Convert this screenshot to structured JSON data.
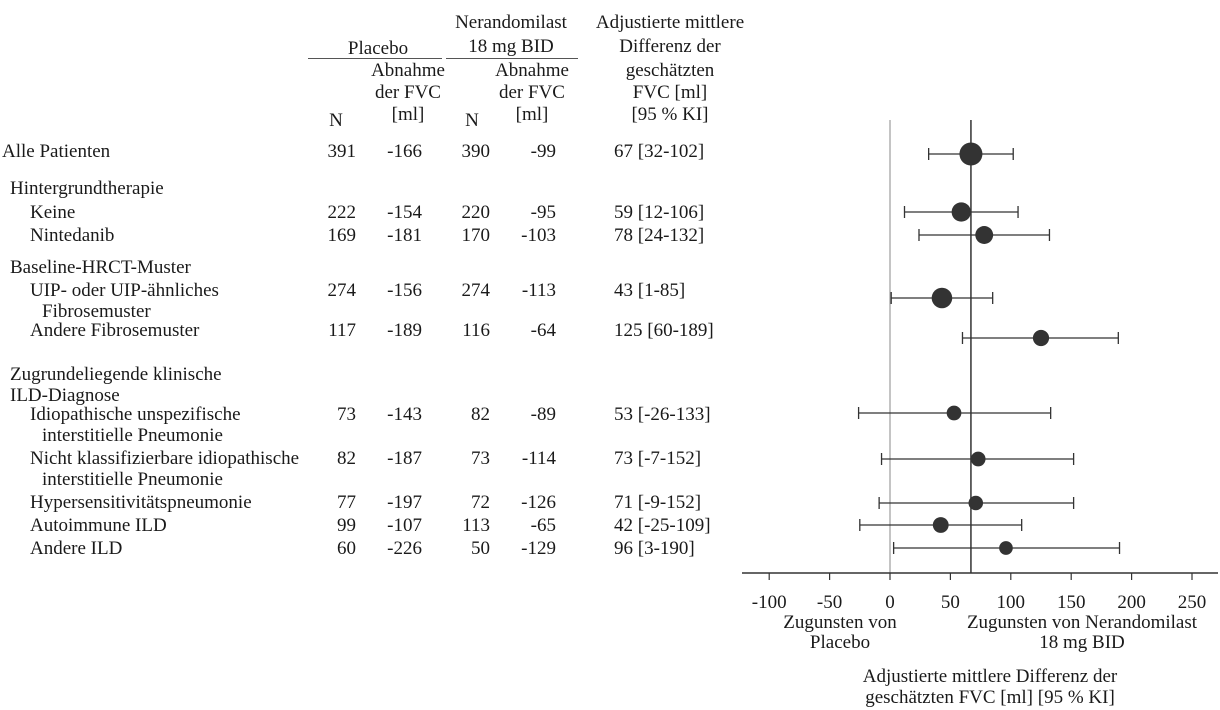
{
  "header": {
    "placebo": "Placebo",
    "ner_line1": "Nerandomilast",
    "ner_line2": "18 mg BID",
    "decline_line1": "Abnahme",
    "decline_line2": "der FVC",
    "decline_line3": "[ml]",
    "n": "N",
    "diff_lines": [
      "Adjustierte mittlere",
      "Differenz der",
      "geschätzten",
      "FVC [ml]",
      "[95 % KI]"
    ]
  },
  "groups": {
    "bg": "Hintergrundtherapie",
    "hrct": "Baseline-HRCT-Muster",
    "ild_line1": "Zugrundeliegende klinische",
    "ild_line2": "ILD-Diagnose"
  },
  "rows": [
    {
      "label": "Alle Patienten",
      "label2": "",
      "n_pbo": "391",
      "dec_pbo": "-166",
      "n_ner": "390",
      "dec_ner": "-99",
      "ci_text": "67 [32-102]"
    },
    {
      "label": "Keine",
      "label2": "",
      "n_pbo": "222",
      "dec_pbo": "-154",
      "n_ner": "220",
      "dec_ner": "-95",
      "ci_text": "59 [12-106]"
    },
    {
      "label": "Nintedanib",
      "label2": "",
      "n_pbo": "169",
      "dec_pbo": "-181",
      "n_ner": "170",
      "dec_ner": "-103",
      "ci_text": "78 [24-132]"
    },
    {
      "label": "UIP- oder UIP-ähnliches",
      "label2": "Fibrosemuster",
      "n_pbo": "274",
      "dec_pbo": "-156",
      "n_ner": "274",
      "dec_ner": "-113",
      "ci_text": "43 [1-85]"
    },
    {
      "label": "Andere Fibrosemuster",
      "label2": "",
      "n_pbo": "117",
      "dec_pbo": "-189",
      "n_ner": "116",
      "dec_ner": "-64",
      "ci_text": "125 [60-189]"
    },
    {
      "label": "Idiopathische unspezifische",
      "label2": "interstitielle Pneumonie",
      "n_pbo": "73",
      "dec_pbo": "-143",
      "n_ner": "82",
      "dec_ner": "-89",
      "ci_text": "53 [-26-133]"
    },
    {
      "label": "Nicht klassifizierbare idiopathische",
      "label2": "interstitielle Pneumonie",
      "n_pbo": "82",
      "dec_pbo": "-187",
      "n_ner": "73",
      "dec_ner": "-114",
      "ci_text": "73 [-7-152]"
    },
    {
      "label": "Hypersensitivitätspneumonie",
      "label2": "",
      "n_pbo": "77",
      "dec_pbo": "-197",
      "n_ner": "72",
      "dec_ner": "-126",
      "ci_text": "71 [-9-152]"
    },
    {
      "label": "Autoimmune ILD",
      "label2": "",
      "n_pbo": "99",
      "dec_pbo": "-107",
      "n_ner": "113",
      "dec_ner": "-65",
      "ci_text": "42 [-25-109]"
    },
    {
      "label": "Andere ILD",
      "label2": "",
      "n_pbo": "60",
      "dec_pbo": "-226",
      "n_ner": "50",
      "dec_ner": "-129",
      "ci_text": "96 [3-190]"
    }
  ],
  "chart_data": {
    "type": "scatter",
    "subtype": "forest",
    "xlim": [
      -120,
      260
    ],
    "xticks": [
      -100,
      -50,
      0,
      50,
      100,
      150,
      200,
      250
    ],
    "overall_reference": 67,
    "null_reference": 0,
    "xlabel_line1": "Adjustierte mittlere Differenz der",
    "xlabel_line2": "geschätzten FVC [ml] [95 % KI]",
    "favors_left_line1": "Zugunsten von",
    "favors_left_line2": "Placebo",
    "favors_right_line1": "Zugunsten von Nerandomilast",
    "favors_right_line2": "18 mg BID",
    "points": [
      {
        "estimate": 67,
        "lower": 32,
        "upper": 102,
        "weight": 781
      },
      {
        "estimate": 59,
        "lower": 12,
        "upper": 106,
        "weight": 442
      },
      {
        "estimate": 78,
        "lower": 24,
        "upper": 132,
        "weight": 339
      },
      {
        "estimate": 43,
        "lower": 1,
        "upper": 85,
        "weight": 548
      },
      {
        "estimate": 125,
        "lower": 60,
        "upper": 189,
        "weight": 233
      },
      {
        "estimate": 53,
        "lower": -26,
        "upper": 133,
        "weight": 155
      },
      {
        "estimate": 73,
        "lower": -7,
        "upper": 152,
        "weight": 155
      },
      {
        "estimate": 71,
        "lower": -9,
        "upper": 152,
        "weight": 149
      },
      {
        "estimate": 42,
        "lower": -25,
        "upper": 109,
        "weight": 212
      },
      {
        "estimate": 96,
        "lower": 3,
        "upper": 190,
        "weight": 110
      }
    ],
    "colors": {
      "marker": "#333333",
      "line": "#333333"
    }
  }
}
